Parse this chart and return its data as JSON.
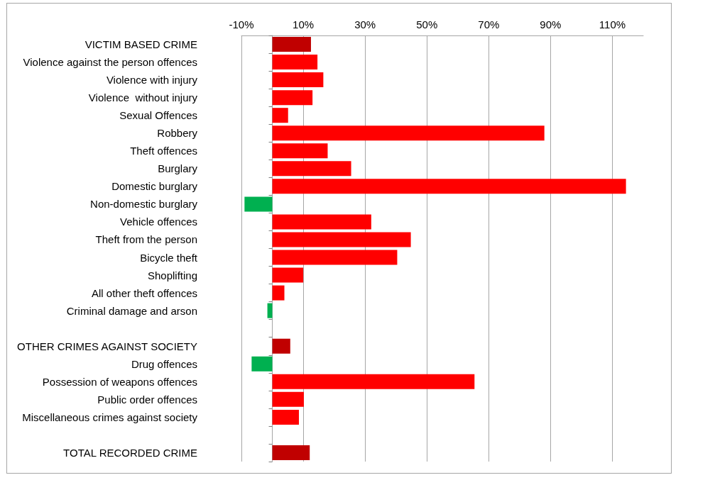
{
  "chart_data": {
    "type": "bar",
    "orientation": "horizontal",
    "categories": [
      "VICTIM BASED CRIME",
      "Violence against the person offences",
      "Violence with injury",
      "Violence  without injury",
      "Sexual Offences",
      "Robbery",
      "Theft offences",
      "Burglary",
      "Domestic burglary",
      "Non-domestic burglary",
      "Vehicle offences",
      "Theft from the person",
      "Bicycle theft",
      "Shoplifting",
      "All other theft offences",
      "Criminal damage and arson",
      null,
      "OTHER CRIMES AGAINST SOCIETY",
      "Drug offences",
      "Possession of weapons offences",
      "Public order offences",
      "Miscellaneous crimes against society",
      null,
      "TOTAL RECORDED CRIME"
    ],
    "values": [
      12.5,
      14.6,
      16.5,
      13.0,
      5.1,
      88,
      17.9,
      25.5,
      114.4,
      -9.0,
      32,
      44.8,
      40.4,
      10.0,
      3.9,
      -1.6,
      null,
      5.8,
      -6.7,
      65.4,
      10.2,
      8.6,
      null,
      12.1
    ],
    "colors": [
      "#c00000",
      "#ff0000",
      "#ff0000",
      "#ff0000",
      "#ff0000",
      "#ff0000",
      "#ff0000",
      "#ff0000",
      "#ff0000",
      "#00b050",
      "#ff0000",
      "#ff0000",
      "#ff0000",
      "#ff0000",
      "#ff0000",
      "#00b050",
      "#ff0000",
      "#c00000",
      "#00b050",
      "#ff0000",
      "#ff0000",
      "#ff0000",
      "#ff0000",
      "#c00000"
    ],
    "xlim": [
      -10,
      120
    ],
    "xticks": [
      {
        "value": -10,
        "label": "-10%"
      },
      {
        "value": 10,
        "label": "10%"
      },
      {
        "value": 30,
        "label": "30%"
      },
      {
        "value": 50,
        "label": "50%"
      },
      {
        "value": 70,
        "label": "70%"
      },
      {
        "value": 90,
        "label": "90%"
      },
      {
        "value": 110,
        "label": "110%"
      }
    ],
    "grid": "x"
  }
}
